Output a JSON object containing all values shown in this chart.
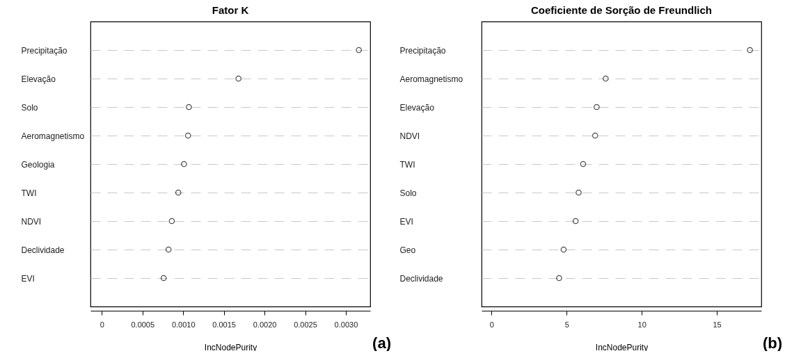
{
  "chart_data": [
    {
      "type": "scatter",
      "title": "Fator K",
      "orientation": "horizontal",
      "categories": [
        "Precipitação",
        "Elevação",
        "Solo",
        "Aeromagnetismo",
        "Geologia",
        "TWI",
        "NDVI",
        "Declividade",
        "EVI"
      ],
      "series": [
        {
          "color": "#000000",
          "values": [
            0.00316,
            0.00168,
            0.00107,
            0.00106,
            0.00101,
            0.00094,
            0.00086,
            0.00082,
            0.00076
          ]
        }
      ],
      "xlabel": "IncNodePurity",
      "xlim": [
        -0.00014,
        0.0033
      ],
      "xticks": [
        {
          "value": 0,
          "label": "0"
        },
        0.0005,
        {
          "value": 0.001,
          "label": "0.0010"
        },
        0.0015,
        {
          "value": 0.002,
          "label": "0.0020"
        },
        0.0025,
        {
          "value": 0.003,
          "label": "0.0030"
        }
      ],
      "grid": "y",
      "marker": "circle",
      "annotations": [
        "(a)"
      ]
    },
    {
      "type": "scatter",
      "title": "Coeficiente de Sorção de Freundlich",
      "orientation": "horizontal",
      "categories": [
        "Precipitação",
        "Aeromagnetismo",
        "Elevação",
        "NDVI",
        "TWI",
        "Solo",
        "EVI",
        "Geo",
        "Declividade"
      ],
      "series": [
        {
          "color": "#000000",
          "values": [
            17.2,
            7.6,
            7.0,
            6.9,
            6.1,
            5.8,
            5.6,
            4.8,
            4.5
          ]
        }
      ],
      "xlabel": "IncNodePurity",
      "xlim": [
        -0.66,
        17.96
      ],
      "xticks": [
        0,
        5,
        10,
        15
      ],
      "grid": "y",
      "marker": "circle",
      "annotations": [
        "(b)"
      ]
    }
  ]
}
